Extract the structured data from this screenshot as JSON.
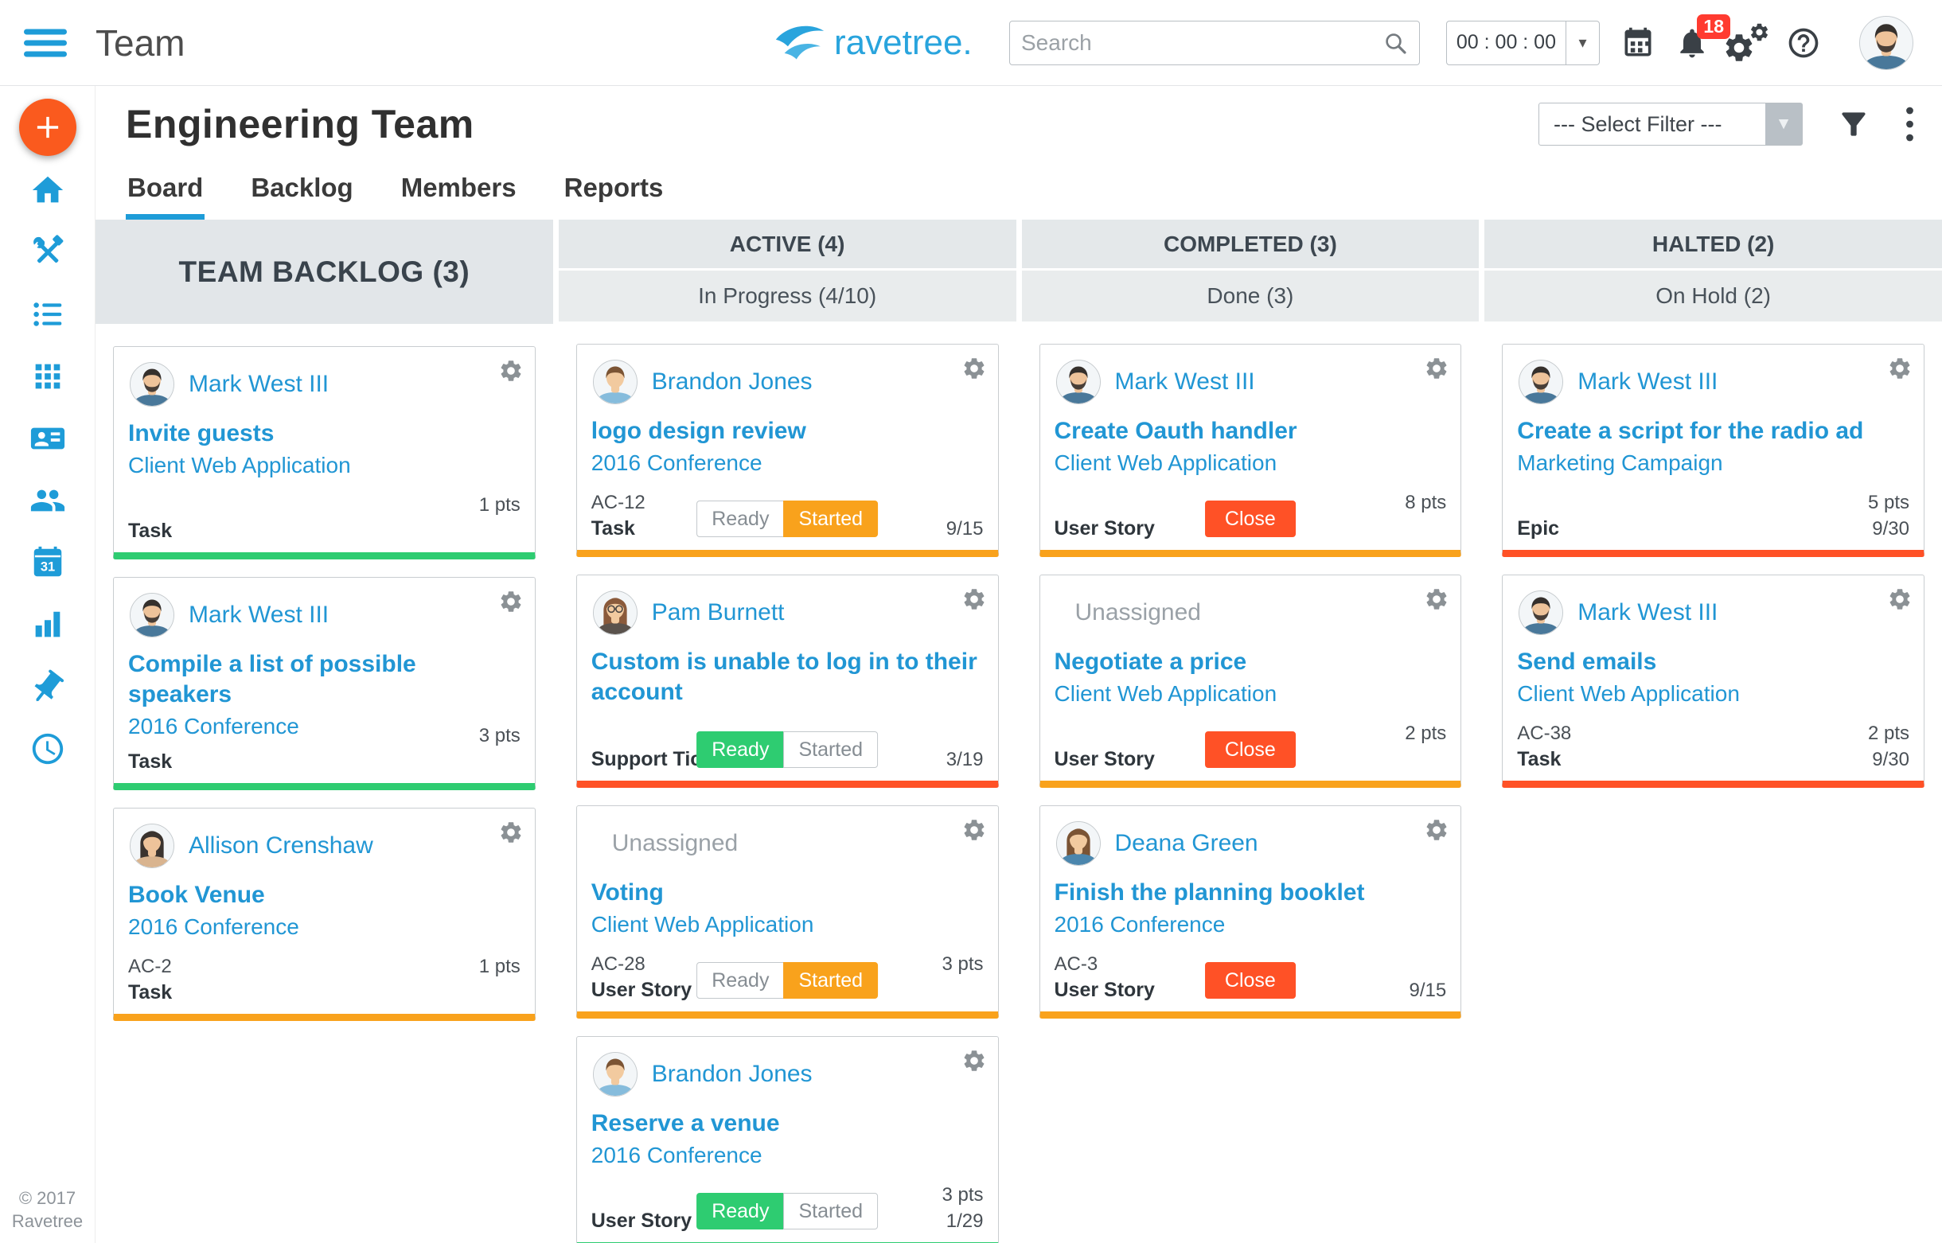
{
  "topbar": {
    "title": "Team",
    "logo_text": "ravetree.",
    "search_placeholder": "Search",
    "timer_value": "00 : 00 : 00",
    "notification_count": "18"
  },
  "sidebar": {
    "items": [
      {
        "icon": "home-icon"
      },
      {
        "icon": "tools-icon"
      },
      {
        "icon": "list-icon"
      },
      {
        "icon": "grid-icon"
      },
      {
        "icon": "contact-card-icon"
      },
      {
        "icon": "people-icon"
      },
      {
        "icon": "calendar-31-icon"
      },
      {
        "icon": "bar-chart-icon"
      },
      {
        "icon": "pushpin-icon"
      },
      {
        "icon": "clock-icon"
      }
    ],
    "copyright_line1": "© 2017",
    "copyright_line2": "Ravetree"
  },
  "page": {
    "title": "Engineering Team",
    "filter_selected": "--- Select Filter ---",
    "tabs": [
      {
        "label": "Board",
        "active": true
      },
      {
        "label": "Backlog",
        "active": false
      },
      {
        "label": "Members",
        "active": false
      },
      {
        "label": "Reports",
        "active": false
      }
    ]
  },
  "labels": {
    "ready": "Ready",
    "started": "Started",
    "close": "Close"
  },
  "colors": {
    "brand_blue": "#1e9cd8",
    "logo_blue": "#29a4dd",
    "link_blue": "#2196d4",
    "plus_orange": "#fa5a1e",
    "badge_red": "#ff3b30",
    "green": "#2ecc71",
    "orange": "#f9a21c",
    "red": "#ff5126"
  },
  "board": {
    "columns": [
      {
        "header": "TEAM BACKLOG (3)",
        "subheader": null,
        "cards": [
          {
            "assignee": "Mark West III",
            "avatar": "male-dark",
            "title": "Invite guests",
            "project": "Client Web Application",
            "code": "",
            "pts": "1 pts",
            "type": "Task",
            "date": "",
            "buttons": "none",
            "accent": "green"
          },
          {
            "assignee": "Mark West III",
            "avatar": "male-dark",
            "title": "Compile a list of possible speakers",
            "project": "2016 Conference",
            "code": "",
            "pts": "3 pts",
            "type": "Task",
            "date": "",
            "buttons": "none",
            "accent": "green"
          },
          {
            "assignee": "Allison Crenshaw",
            "avatar": "female-dark",
            "title": "Book Venue",
            "project": "2016 Conference",
            "code": "AC-2",
            "pts": "1 pts",
            "type": "Task",
            "date": "",
            "buttons": "none",
            "accent": "orange"
          }
        ]
      },
      {
        "header": "ACTIVE (4)",
        "subheader": "In Progress (4/10)",
        "cards": [
          {
            "assignee": "Brandon Jones",
            "avatar": "male-brown",
            "title": "logo design review",
            "project": "2016 Conference",
            "code": "AC-12",
            "pts": "",
            "type": "Task",
            "date": "9/15",
            "buttons": "toggle-started",
            "accent": "orange"
          },
          {
            "assignee": "Pam Burnett",
            "avatar": "female-glasses",
            "title": "Custom is unable to log in to their account",
            "project": "",
            "code": "",
            "pts": "",
            "type": "Support Ticket",
            "date": "3/19",
            "buttons": "toggle-ready",
            "accent": "red"
          },
          {
            "assignee": "Unassigned",
            "avatar": null,
            "title": "Voting",
            "project": "Client Web Application",
            "code": "AC-28",
            "pts": "3 pts",
            "type": "User Story",
            "date": "",
            "buttons": "toggle-started",
            "accent": "orange"
          },
          {
            "assignee": "Brandon Jones",
            "avatar": "male-brown",
            "title": "Reserve a venue",
            "project": "2016 Conference",
            "code": "",
            "pts": "3 pts",
            "type": "User Story",
            "date": "1/29",
            "buttons": "toggle-ready",
            "accent": "green"
          }
        ]
      },
      {
        "header": "COMPLETED (3)",
        "subheader": "Done (3)",
        "cards": [
          {
            "assignee": "Mark West III",
            "avatar": "male-dark",
            "title": "Create Oauth handler",
            "project": "Client Web Application",
            "code": "",
            "pts": "8 pts",
            "type": "User Story",
            "date": "",
            "buttons": "close",
            "accent": "orange"
          },
          {
            "assignee": "Unassigned",
            "avatar": null,
            "title": "Negotiate a price",
            "project": "Client Web Application",
            "code": "",
            "pts": "2 pts",
            "type": "User Story",
            "date": "",
            "buttons": "close",
            "accent": "orange"
          },
          {
            "assignee": "Deana Green",
            "avatar": "female-brown",
            "title": "Finish the planning booklet",
            "project": "2016 Conference",
            "code": "AC-3",
            "pts": "",
            "type": "User Story",
            "date": "9/15",
            "buttons": "close",
            "accent": "orange"
          }
        ]
      },
      {
        "header": "HALTED (2)",
        "subheader": "On Hold (2)",
        "cards": [
          {
            "assignee": "Mark West III",
            "avatar": "male-dark",
            "title": "Create a script for the radio ad",
            "project": "Marketing Campaign",
            "code": "",
            "pts": "5 pts",
            "type": "Epic",
            "date": "9/30",
            "buttons": "none",
            "accent": "red"
          },
          {
            "assignee": "Mark West III",
            "avatar": "male-dark",
            "title": "Send emails",
            "project": "Client Web Application",
            "code": "AC-38",
            "pts": "2 pts",
            "type": "Task",
            "date": "9/30",
            "buttons": "none",
            "accent": "red"
          }
        ]
      }
    ]
  }
}
